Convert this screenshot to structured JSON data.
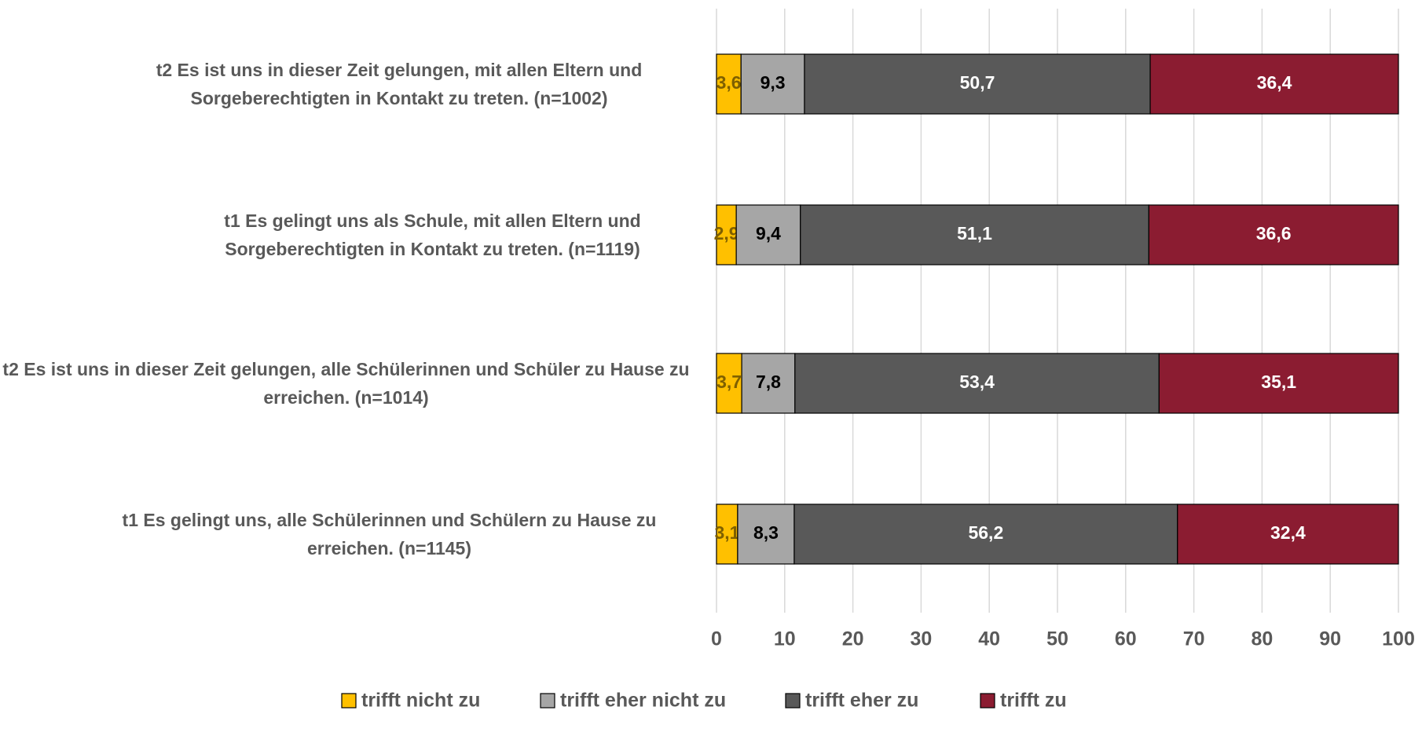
{
  "chart_data": {
    "type": "stacked-barh",
    "categories": [
      "t2 Es ist uns in dieser Zeit gelungen, mit allen Eltern und Sorgeberechtigten in Kontakt zu treten. (n=1002)",
      "t1 Es gelingt uns als Schule, mit allen Eltern und Sorgeberechtigten in Kontakt zu treten. (n=1119)",
      "t2 Es ist uns in dieser Zeit gelungen, alle Schülerinnen und Schüler zu Hause zu erreichen. (n=1014)",
      "t1 Es gelingt uns, alle Schülerinnen und Schülern zu Hause zu erreichen. (n=1145)"
    ],
    "series": [
      {
        "name": "trifft nicht zu",
        "color": "#FFC000",
        "label_color": "#7F6000",
        "values": [
          3.6,
          2.9,
          3.7,
          3.1
        ],
        "value_labels": [
          "3,6",
          "2,9",
          "3,7",
          "3,1"
        ]
      },
      {
        "name": "trifft eher nicht zu",
        "color": "#A6A6A6",
        "label_color": "#000000",
        "values": [
          9.3,
          9.4,
          7.8,
          8.3
        ],
        "value_labels": [
          "9,3",
          "9,4",
          "7,8",
          "8,3"
        ]
      },
      {
        "name": "trifft eher zu",
        "color": "#595959",
        "label_color": "#FFFFFF",
        "values": [
          50.7,
          51.1,
          53.4,
          56.2
        ],
        "value_labels": [
          "50,7",
          "51,1",
          "53,4",
          "56,2"
        ]
      },
      {
        "name": "trifft zu",
        "color": "#8B1C31",
        "label_color": "#FFFFFF",
        "values": [
          36.4,
          36.6,
          35.1,
          32.4
        ],
        "value_labels": [
          "36,4",
          "36,6",
          "35,1",
          "32,4"
        ]
      }
    ],
    "xlim": [
      0,
      100
    ],
    "xticks": [
      0,
      10,
      20,
      30,
      40,
      50,
      60,
      70,
      80,
      90,
      100
    ],
    "grid": true,
    "legend": "bottom"
  }
}
